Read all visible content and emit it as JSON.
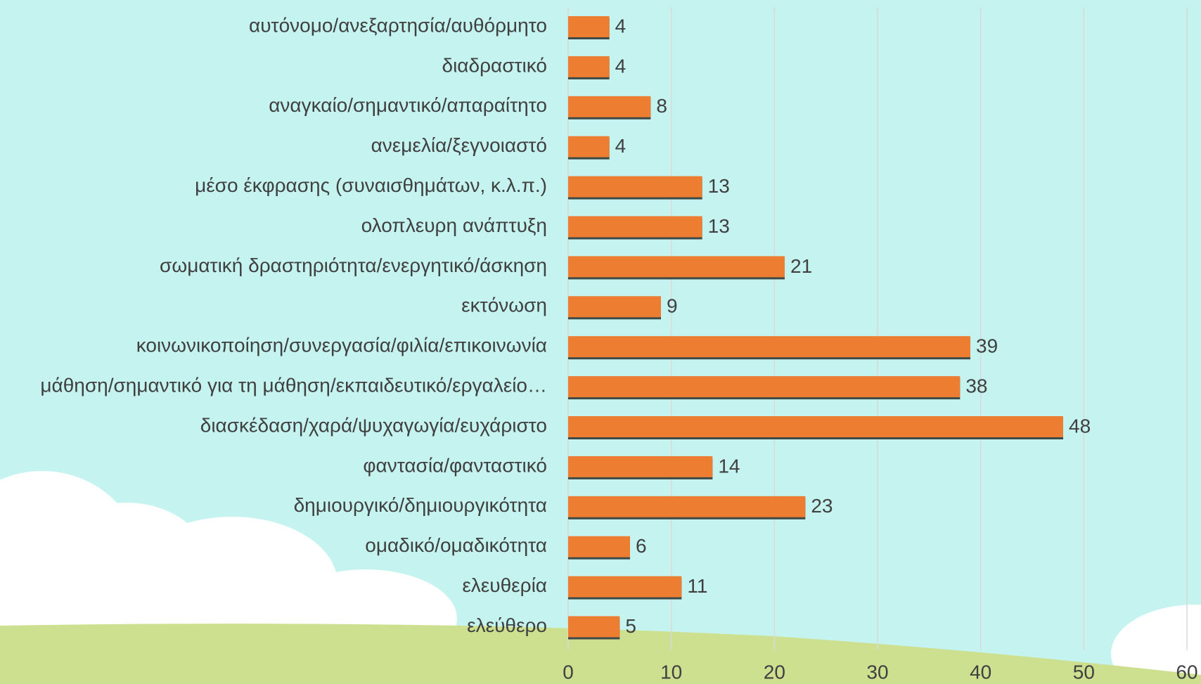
{
  "chart_data": {
    "type": "barh",
    "categories": [
      "αυτόνομο/ανεξαρτησία/αυθόρμητο",
      "διαδραστικό",
      "αναγκαίο/σημαντικό/απαραίτητο",
      "ανεμελία/ξεγνοιαστό",
      "μέσο έκφρασης (συναισθημάτων, κ.λ.π.)",
      "ολοπλευρη ανάπτυξη",
      "σωματική δραστηριότητα/ενεργητικό/άσκηση",
      "εκτόνωση",
      "κοινωνικοποίηση/συνεργασία/φιλία/επικοινωνία",
      "μάθηση/σημαντικό για τη μάθηση/εκπαιδευτικό/εργαλείο…",
      "διασκέδαση/χαρά/ψυχαγωγία/ευχάριστο",
      "φαντασία/φανταστικό",
      "δημιουργικό/δημιουργικότητα",
      "ομαδικό/ομαδικότητα",
      "ελευθερία",
      "ελεύθερο"
    ],
    "values": [
      4,
      4,
      8,
      4,
      13,
      13,
      21,
      9,
      39,
      38,
      48,
      14,
      23,
      6,
      11,
      5
    ],
    "color": "#ed7d31",
    "xlim": [
      0,
      60
    ],
    "xticks": [
      0,
      10,
      20,
      30,
      40,
      50,
      60
    ],
    "grid": true
  }
}
